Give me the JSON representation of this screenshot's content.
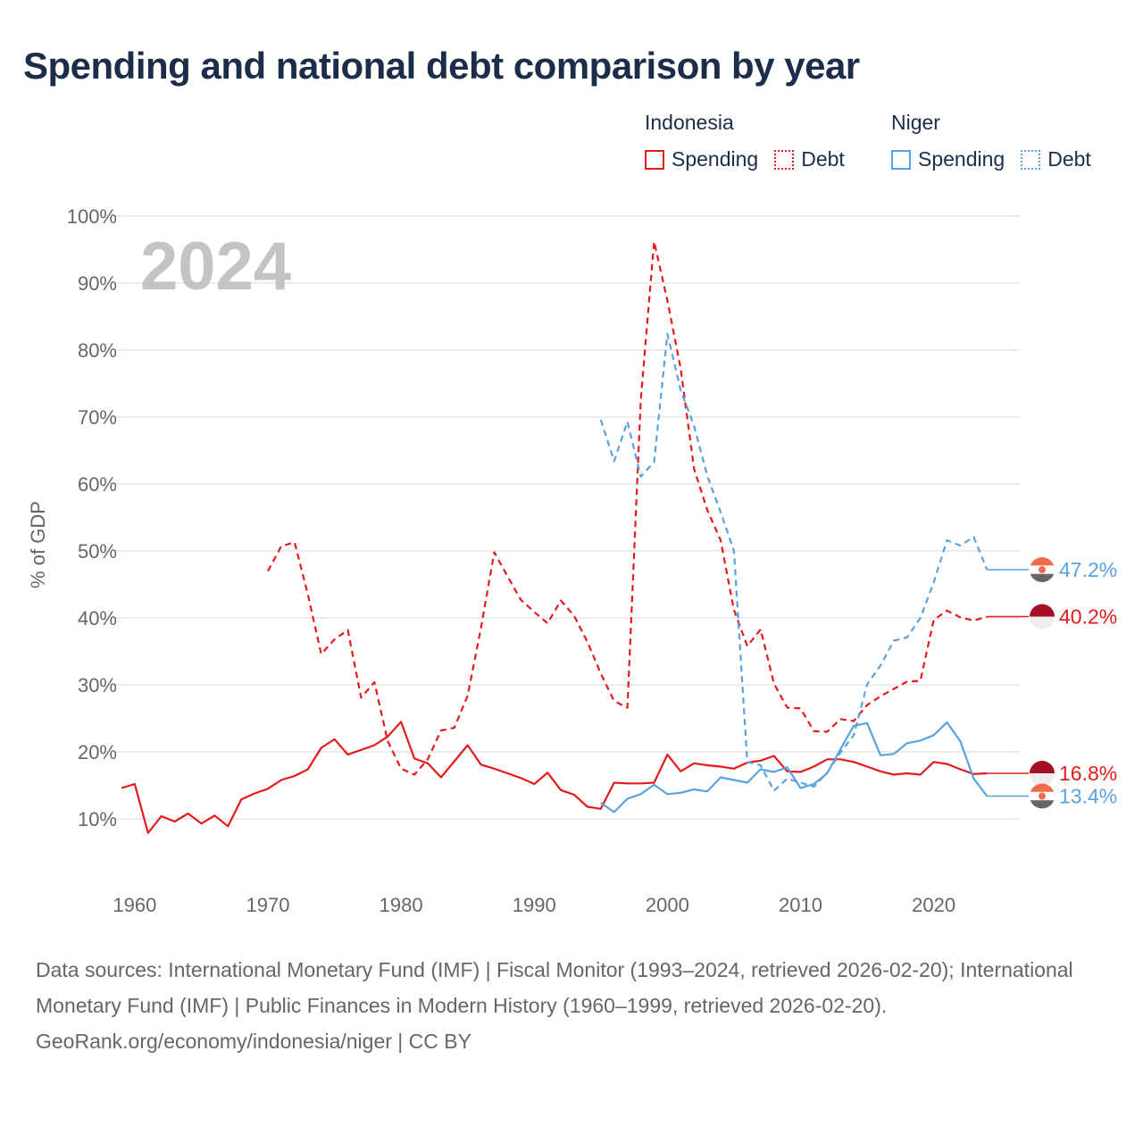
{
  "title": "Spending and national debt comparison by year",
  "legend": {
    "groups": [
      {
        "country": "Indonesia",
        "color": "#e41a1c",
        "items": [
          {
            "label": "Spending",
            "style": "solid"
          },
          {
            "label": "Debt",
            "style": "dotted"
          }
        ]
      },
      {
        "country": "Niger",
        "color": "#5aa2e0",
        "items": [
          {
            "label": "Spending",
            "style": "solid"
          },
          {
            "label": "Debt",
            "style": "dotted"
          }
        ]
      }
    ]
  },
  "chart_data": {
    "type": "line",
    "year_label": "2024",
    "ylabel": "% of GDP",
    "xlim": [
      1959,
      2027
    ],
    "ylim": [
      0,
      100
    ],
    "x_ticks": [
      1960,
      1970,
      1980,
      1990,
      2000,
      2010,
      2020
    ],
    "y_ticks": [
      10,
      20,
      30,
      40,
      50,
      60,
      70,
      80,
      90,
      100
    ],
    "y_tick_labels": [
      "10%",
      "20%",
      "30%",
      "40%",
      "50%",
      "60%",
      "70%",
      "80%",
      "90%",
      "100%"
    ],
    "series": [
      {
        "name": "Indonesia Spending",
        "color": "#e41a1c",
        "dash": "solid",
        "end_label": "16.8%",
        "end_value": 16.8,
        "x": [
          1959,
          1960,
          1961,
          1962,
          1963,
          1964,
          1965,
          1966,
          1967,
          1968,
          1969,
          1970,
          1971,
          1972,
          1973,
          1974,
          1975,
          1976,
          1977,
          1978,
          1979,
          1980,
          1981,
          1982,
          1983,
          1984,
          1985,
          1986,
          1987,
          1988,
          1989,
          1990,
          1991,
          1992,
          1993,
          1994,
          1995,
          1996,
          1997,
          1998,
          1999,
          2000,
          2001,
          2002,
          2003,
          2004,
          2005,
          2006,
          2007,
          2008,
          2009,
          2010,
          2011,
          2012,
          2013,
          2014,
          2015,
          2016,
          2017,
          2018,
          2019,
          2020,
          2021,
          2022,
          2023,
          2024
        ],
        "y": [
          14.6,
          15.2,
          7.9,
          10.4,
          9.6,
          10.8,
          9.3,
          10.5,
          8.9,
          12.9,
          13.8,
          14.5,
          15.8,
          16.4,
          17.4,
          20.6,
          21.9,
          19.6,
          20.3,
          21.0,
          22.3,
          24.5,
          19.0,
          18.3,
          16.2,
          18.6,
          21.0,
          18.1,
          17.5,
          16.8,
          16.1,
          15.2,
          16.9,
          14.3,
          13.6,
          11.8,
          11.5,
          15.4,
          15.3,
          15.3,
          15.4,
          19.6,
          17.1,
          18.3,
          18.0,
          17.8,
          17.5,
          18.4,
          18.7,
          19.4,
          17.1,
          17.0,
          17.8,
          18.9,
          18.9,
          18.5,
          17.8,
          17.1,
          16.6,
          16.8,
          16.6,
          18.5,
          18.2,
          17.4,
          16.7,
          16.8
        ]
      },
      {
        "name": "Indonesia Debt",
        "color": "#e41a1c",
        "dash": "dashed",
        "end_label": "40.2%",
        "end_value": 40.2,
        "x": [
          1970,
          1971,
          1972,
          1973,
          1974,
          1975,
          1976,
          1977,
          1978,
          1979,
          1980,
          1981,
          1982,
          1983,
          1984,
          1985,
          1986,
          1987,
          1988,
          1989,
          1990,
          1991,
          1992,
          1993,
          1994,
          1995,
          1996,
          1997,
          1998,
          1999,
          2000,
          2001,
          2002,
          2003,
          2004,
          2005,
          2006,
          2007,
          2008,
          2009,
          2010,
          2011,
          2012,
          2013,
          2014,
          2015,
          2016,
          2017,
          2018,
          2019,
          2020,
          2021,
          2022,
          2023,
          2024
        ],
        "y": [
          47.0,
          50.7,
          51.3,
          43.5,
          34.6,
          36.8,
          38.2,
          28.1,
          30.4,
          21.6,
          17.5,
          16.6,
          18.9,
          23.2,
          23.6,
          28.4,
          38.5,
          49.8,
          46.2,
          42.7,
          40.9,
          39.2,
          42.6,
          40.3,
          36.4,
          31.7,
          27.6,
          26.6,
          72.6,
          96.2,
          87.4,
          77.2,
          62.3,
          56.1,
          51.6,
          41.2,
          35.8,
          38.3,
          30.2,
          26.6,
          26.5,
          23.1,
          23.0,
          24.9,
          24.6,
          27.0,
          28.3,
          29.4,
          30.5,
          30.6,
          39.7,
          41.1,
          40.1,
          39.6,
          40.2
        ]
      },
      {
        "name": "Niger Spending",
        "color": "#5aa2e0",
        "dash": "solid",
        "end_label": "13.4%",
        "end_value": 13.4,
        "x": [
          1995,
          1996,
          1997,
          1998,
          1999,
          2000,
          2001,
          2002,
          2003,
          2004,
          2005,
          2006,
          2007,
          2008,
          2009,
          2010,
          2011,
          2012,
          2013,
          2014,
          2015,
          2016,
          2017,
          2018,
          2019,
          2020,
          2021,
          2022,
          2023,
          2024
        ],
        "y": [
          12.4,
          11.0,
          13.0,
          13.7,
          15.1,
          13.7,
          13.9,
          14.4,
          14.1,
          16.2,
          15.8,
          15.4,
          17.4,
          17.0,
          17.7,
          14.6,
          15.2,
          16.8,
          20.4,
          23.9,
          24.3,
          19.5,
          19.7,
          21.3,
          21.7,
          22.5,
          24.4,
          21.6,
          16.0,
          13.4
        ]
      },
      {
        "name": "Niger Debt",
        "color": "#5aa2e0",
        "dash": "dashed",
        "end_label": "47.2%",
        "end_value": 47.2,
        "x": [
          1995,
          1996,
          1997,
          1998,
          1999,
          2000,
          2001,
          2002,
          2003,
          2004,
          2005,
          2006,
          2007,
          2008,
          2009,
          2010,
          2011,
          2012,
          2013,
          2014,
          2015,
          2016,
          2017,
          2018,
          2019,
          2020,
          2021,
          2022,
          2023,
          2024
        ],
        "y": [
          69.6,
          63.4,
          69.3,
          61.1,
          63.3,
          82.4,
          74.0,
          68.7,
          61.2,
          55.8,
          50.0,
          18.5,
          18.0,
          14.2,
          16.0,
          15.4,
          14.8,
          16.9,
          19.9,
          22.5,
          30.1,
          32.9,
          36.6,
          37.1,
          40.0,
          45.3,
          51.6,
          50.8,
          52.1,
          47.2
        ]
      }
    ]
  },
  "flags": {
    "indonesia": {
      "top": "#a50f27",
      "bottom": "#eeeeee"
    },
    "niger": {
      "top": "#f06a4c",
      "middle": "#ffffff",
      "bottom": "#666666",
      "disc": "#f06a4c"
    }
  },
  "source": {
    "line1": "Data sources: International Monetary Fund (IMF) | Fiscal Monitor (1993–2024, retrieved 2026-02-20); International Monetary Fund (IMF) | Public Finances in Modern History (1960–1999, retrieved 2026-02-20).",
    "line2": "GeoRank.org/economy/indonesia/niger | CC BY"
  }
}
